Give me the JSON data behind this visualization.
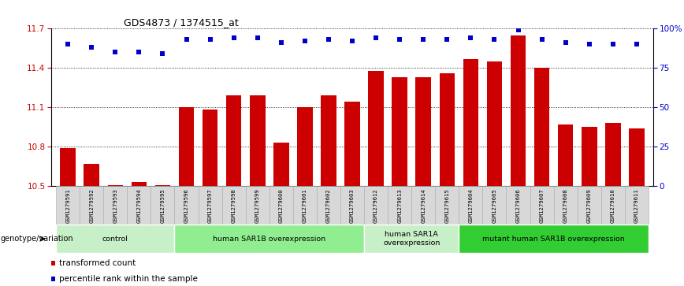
{
  "title": "GDS4873 / 1374515_at",
  "samples": [
    "GSM1279591",
    "GSM1279592",
    "GSM1279593",
    "GSM1279594",
    "GSM1279595",
    "GSM1279596",
    "GSM1279597",
    "GSM1279598",
    "GSM1279599",
    "GSM1279600",
    "GSM1279601",
    "GSM1279602",
    "GSM1279603",
    "GSM1279612",
    "GSM1279613",
    "GSM1279614",
    "GSM1279615",
    "GSM1279604",
    "GSM1279605",
    "GSM1279606",
    "GSM1279607",
    "GSM1279608",
    "GSM1279609",
    "GSM1279610",
    "GSM1279611"
  ],
  "bar_values": [
    10.79,
    10.67,
    10.505,
    10.53,
    10.505,
    11.1,
    11.08,
    11.19,
    11.19,
    10.83,
    11.1,
    11.19,
    11.14,
    11.38,
    11.33,
    11.33,
    11.36,
    11.47,
    11.45,
    11.65,
    11.4,
    10.97,
    10.95,
    10.98,
    10.94
  ],
  "percentile_values": [
    90,
    88,
    85,
    85,
    84,
    93,
    93,
    94,
    94,
    91,
    92,
    93,
    92,
    94,
    93,
    93,
    93,
    94,
    93,
    99,
    93,
    91,
    90,
    90,
    90
  ],
  "bar_color": "#cc0000",
  "dot_color": "#0000cc",
  "ylim_left": [
    10.5,
    11.7
  ],
  "ylim_right": [
    0,
    100
  ],
  "yticks_left": [
    10.5,
    10.8,
    11.1,
    11.4,
    11.7
  ],
  "yticks_right": [
    0,
    25,
    50,
    75,
    100
  ],
  "ytick_labels_right": [
    "0",
    "25",
    "50",
    "75",
    "100%"
  ],
  "groups": [
    {
      "label": "control",
      "start": 0,
      "end": 5,
      "color": "#c8f0c8"
    },
    {
      "label": "human SAR1B overexpression",
      "start": 5,
      "end": 13,
      "color": "#90ee90"
    },
    {
      "label": "human SAR1A\noverexpression",
      "start": 13,
      "end": 17,
      "color": "#c8f0c8"
    },
    {
      "label": "mutant human SAR1B overexpression",
      "start": 17,
      "end": 25,
      "color": "#32cd32"
    }
  ],
  "group_row_label": "genotype/variation",
  "legend_items": [
    {
      "color": "#cc0000",
      "label": "transformed count"
    },
    {
      "color": "#0000cc",
      "label": "percentile rank within the sample"
    }
  ],
  "bar_color_left_axis": "#cc0000",
  "dot_color_right_axis": "#0000cc",
  "bar_width": 0.65
}
